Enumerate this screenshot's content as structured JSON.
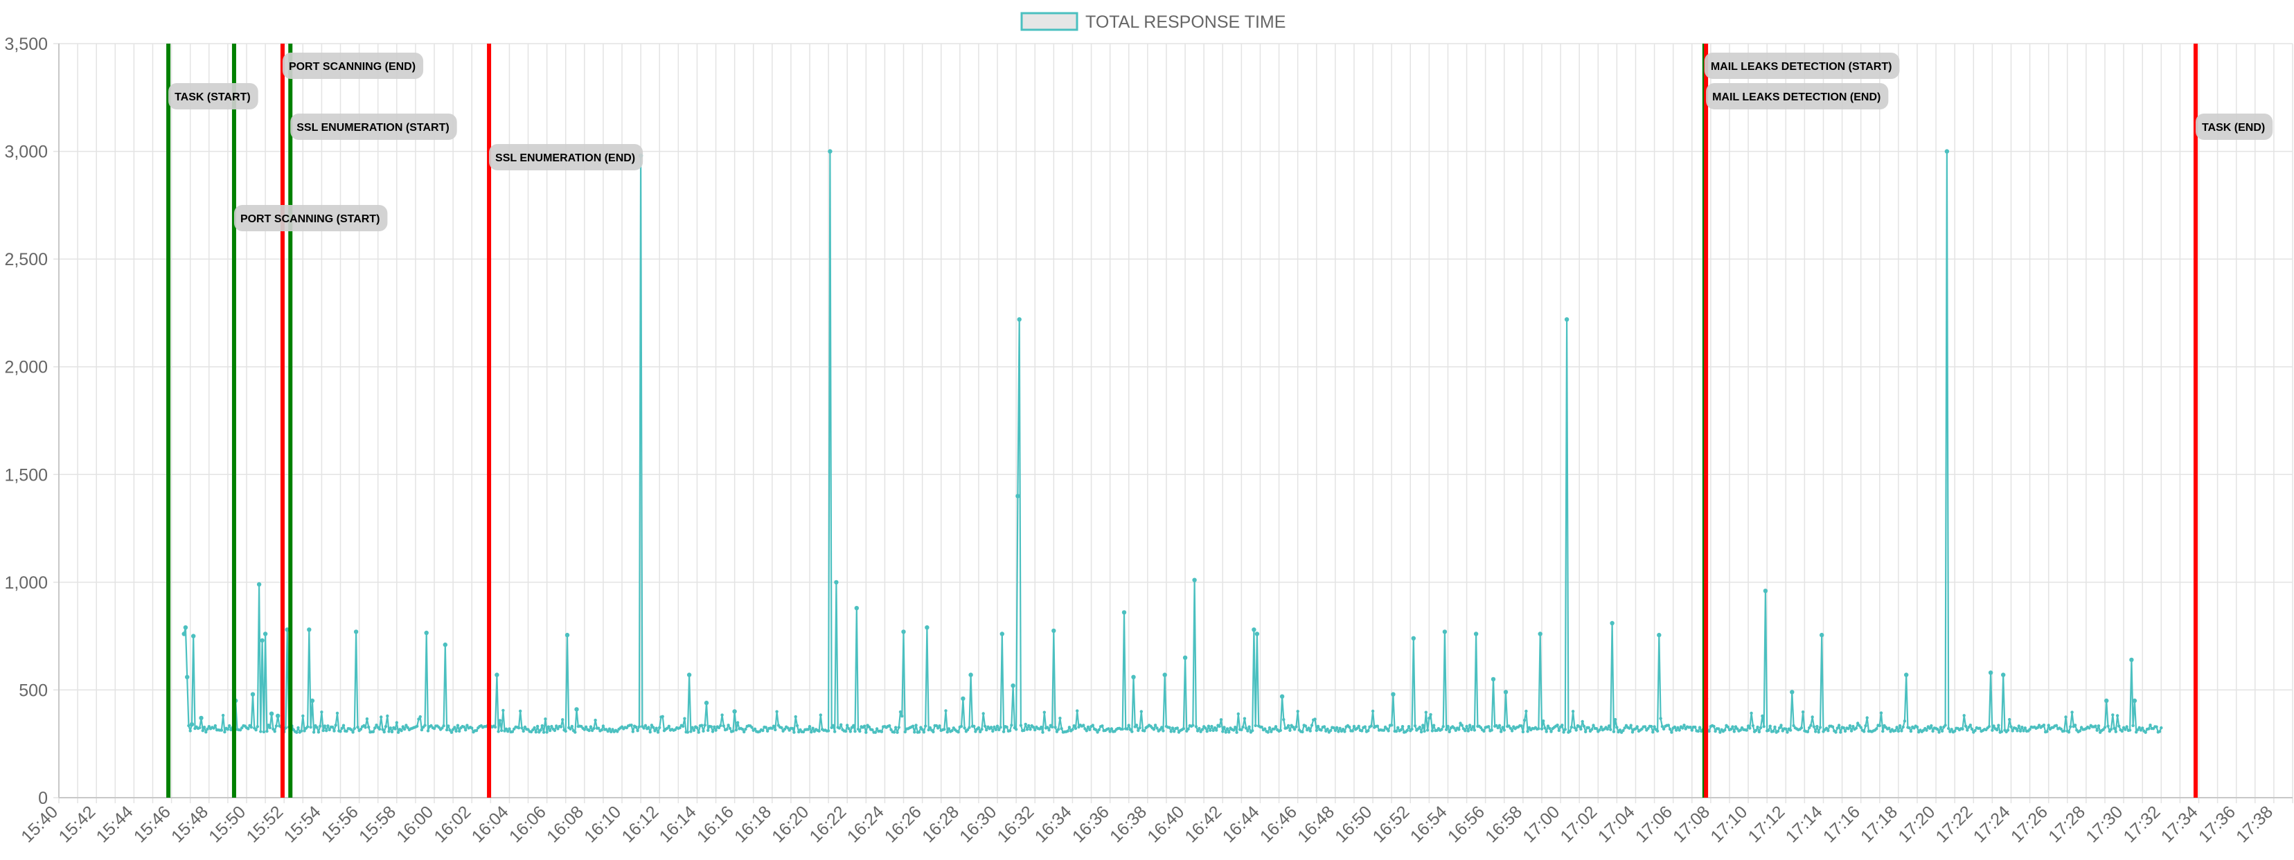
{
  "chart_data": {
    "type": "line",
    "title": "",
    "xlabel": "",
    "ylabel": "",
    "legend": {
      "position": "top",
      "entries": [
        "TOTAL RESPONSE TIME"
      ]
    },
    "grid": true,
    "x_range": [
      "15:40",
      "17:39"
    ],
    "ylim": [
      0,
      3500
    ],
    "y_ticks": [
      0,
      500,
      1000,
      1500,
      2000,
      2500,
      3000,
      3500
    ],
    "y_tick_labels": [
      "0",
      "500",
      "1,000",
      "1,500",
      "2,000",
      "2,500",
      "3,000",
      "3,500"
    ],
    "x_tick_labels": [
      "15:40",
      "15:42",
      "15:44",
      "15:46",
      "15:48",
      "15:50",
      "15:52",
      "15:54",
      "15:56",
      "15:58",
      "16:00",
      "16:02",
      "16:04",
      "16:06",
      "16:08",
      "16:10",
      "16:12",
      "16:14",
      "16:16",
      "16:18",
      "16:20",
      "16:22",
      "16:24",
      "16:26",
      "16:28",
      "16:30",
      "16:32",
      "16:34",
      "16:36",
      "16:38",
      "16:40",
      "16:42",
      "16:44",
      "16:46",
      "16:48",
      "16:50",
      "16:52",
      "16:54",
      "16:56",
      "16:58",
      "17:00",
      "17:02",
      "17:04",
      "17:06",
      "17:08",
      "17:10",
      "17:12",
      "17:14",
      "17:16",
      "17:18",
      "17:20",
      "17:22",
      "17:24",
      "17:26",
      "17:28",
      "17:30",
      "17:32",
      "17:34",
      "17:36",
      "17:38"
    ],
    "series": [
      {
        "name": "TOTAL RESPONSE TIME",
        "color": "#4bc0c0",
        "baseline": 320,
        "x_start": "15:46:40",
        "x_end": "17:32:00",
        "points": [
          [
            "15:46:40",
            760
          ],
          [
            "15:46:45",
            790
          ],
          [
            "15:46:50",
            560
          ],
          [
            "15:47:05",
            340
          ],
          [
            "15:47:10",
            750
          ],
          [
            "15:47:35",
            370
          ],
          [
            "15:49:25",
            450
          ],
          [
            "15:50:20",
            480
          ],
          [
            "15:50:40",
            990
          ],
          [
            "15:50:50",
            730
          ],
          [
            "15:51:00",
            760
          ],
          [
            "15:51:20",
            390
          ],
          [
            "15:51:40",
            380
          ],
          [
            "15:52:10",
            780
          ],
          [
            "15:53:20",
            780
          ],
          [
            "15:53:30",
            450
          ],
          [
            "15:55:50",
            770
          ],
          [
            "15:59:35",
            765
          ],
          [
            "16:00:35",
            710
          ],
          [
            "16:03:20",
            570
          ],
          [
            "16:07:05",
            755
          ],
          [
            "16:07:35",
            410
          ],
          [
            "16:11:00",
            2980
          ],
          [
            "16:13:35",
            570
          ],
          [
            "16:14:30",
            440
          ],
          [
            "16:16:00",
            400
          ],
          [
            "16:21:05",
            3000
          ],
          [
            "16:21:25",
            1000
          ],
          [
            "16:22:30",
            880
          ],
          [
            "16:25:00",
            770
          ],
          [
            "16:26:15",
            790
          ],
          [
            "16:28:10",
            460
          ],
          [
            "16:28:35",
            570
          ],
          [
            "16:30:15",
            760
          ],
          [
            "16:30:50",
            520
          ],
          [
            "16:31:05",
            1400
          ],
          [
            "16:31:10",
            2220
          ],
          [
            "16:33:00",
            775
          ],
          [
            "16:36:45",
            860
          ],
          [
            "16:37:15",
            560
          ],
          [
            "16:38:55",
            570
          ],
          [
            "16:40:00",
            650
          ],
          [
            "16:40:30",
            1010
          ],
          [
            "16:43:40",
            780
          ],
          [
            "16:43:50",
            760
          ],
          [
            "16:45:10",
            470
          ],
          [
            "16:51:05",
            480
          ],
          [
            "16:52:10",
            740
          ],
          [
            "16:53:50",
            770
          ],
          [
            "16:55:30",
            760
          ],
          [
            "16:56:25",
            550
          ],
          [
            "16:57:05",
            490
          ],
          [
            "16:58:55",
            760
          ],
          [
            "17:00:20",
            2220
          ],
          [
            "17:02:45",
            810
          ],
          [
            "17:05:15",
            755
          ],
          [
            "17:07:45",
            460
          ],
          [
            "17:10:55",
            960
          ],
          [
            "17:12:20",
            490
          ],
          [
            "17:13:55",
            755
          ],
          [
            "17:18:25",
            570
          ],
          [
            "17:20:35",
            3000
          ],
          [
            "17:22:55",
            580
          ],
          [
            "17:23:35",
            570
          ],
          [
            "17:29:05",
            450
          ],
          [
            "17:30:25",
            640
          ],
          [
            "17:30:35",
            450
          ]
        ]
      }
    ],
    "annotations": [
      {
        "label": "TASK (START)",
        "time": "15:45:50",
        "color": "#008000",
        "row": 2
      },
      {
        "label": "PORT SCANNING (START)",
        "time": "15:49:20",
        "color": "#008000",
        "row": 6
      },
      {
        "label": "PORT SCANNING (END)",
        "time": "15:51:55",
        "color": "#ff0000",
        "row": 1
      },
      {
        "label": "SSL ENUMERATION (START)",
        "time": "15:52:20",
        "color": "#008000",
        "row": 3
      },
      {
        "label": "SSL ENUMERATION (END)",
        "time": "16:02:55",
        "color": "#ff0000",
        "row": 4
      },
      {
        "label": "MAIL LEAKS DETECTION (START)",
        "time": "17:07:40",
        "color": "#008000",
        "row": 1
      },
      {
        "label": "MAIL LEAKS DETECTION (END)",
        "time": "17:07:45",
        "color": "#ff0000",
        "row": 2
      },
      {
        "label": "TASK (END)",
        "time": "17:33:50",
        "color": "#ff0000",
        "row": 3
      }
    ]
  }
}
